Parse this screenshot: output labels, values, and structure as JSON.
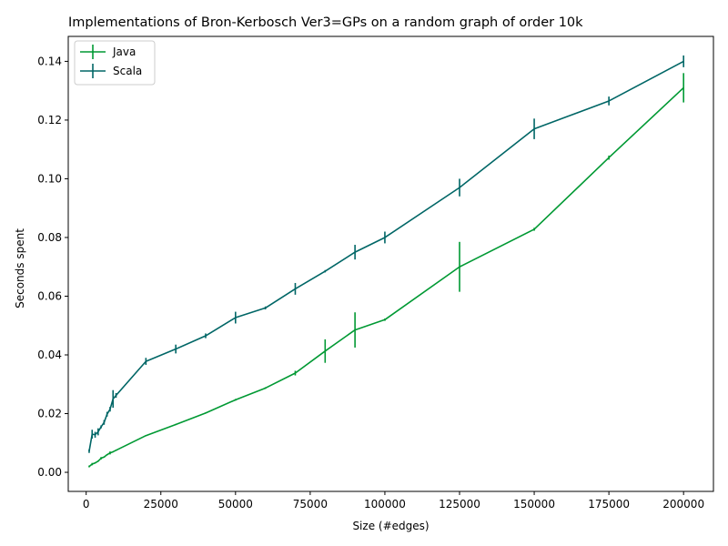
{
  "chart_data": {
    "type": "line",
    "title": "Implementations of Bron-Kerbosch Ver3=GPs on a random graph of order 10k",
    "xlabel": "Size (#edges)",
    "ylabel": "Seconds spent",
    "xlim": [
      -6000,
      210000
    ],
    "ylim": [
      -0.0065,
      0.1485
    ],
    "xticks": [
      0,
      25000,
      50000,
      75000,
      100000,
      125000,
      150000,
      175000,
      200000
    ],
    "yticks": [
      0.0,
      0.02,
      0.04,
      0.06,
      0.08,
      0.1,
      0.12,
      0.14
    ],
    "xtick_labels": [
      "0",
      "25000",
      "50000",
      "75000",
      "100000",
      "125000",
      "150000",
      "175000",
      "200000"
    ],
    "ytick_labels": [
      "0.00",
      "0.02",
      "0.04",
      "0.06",
      "0.08",
      "0.10",
      "0.12",
      "0.14"
    ],
    "grid": false,
    "legend_position": "top-left",
    "series": [
      {
        "name": "Java",
        "color": "#009933",
        "points": [
          {
            "x": 1000,
            "y": 0.002,
            "err": 0.0003
          },
          {
            "x": 2000,
            "y": 0.0028,
            "err": 0.0004
          },
          {
            "x": 3000,
            "y": 0.0032,
            "err": 0.0002
          },
          {
            "x": 4000,
            "y": 0.0038,
            "err": 0.0002
          },
          {
            "x": 5000,
            "y": 0.0048,
            "err": 0.0004
          },
          {
            "x": 6000,
            "y": 0.0052,
            "err": 0.0002
          },
          {
            "x": 7000,
            "y": 0.006,
            "err": 0.0002
          },
          {
            "x": 8000,
            "y": 0.0066,
            "err": 0.0005
          },
          {
            "x": 9000,
            "y": 0.007,
            "err": 0.0002
          },
          {
            "x": 10000,
            "y": 0.0075,
            "err": 0.0002
          },
          {
            "x": 20000,
            "y": 0.0125,
            "err": 0.0002
          },
          {
            "x": 30000,
            "y": 0.0163,
            "err": 0.0002
          },
          {
            "x": 40000,
            "y": 0.0202,
            "err": 0.0002
          },
          {
            "x": 50000,
            "y": 0.0247,
            "err": 0.0003
          },
          {
            "x": 60000,
            "y": 0.0287,
            "err": 0.0003
          },
          {
            "x": 70000,
            "y": 0.0338,
            "err": 0.0008
          },
          {
            "x": 80000,
            "y": 0.0413,
            "err": 0.004
          },
          {
            "x": 90000,
            "y": 0.0485,
            "err": 0.006
          },
          {
            "x": 100000,
            "y": 0.052,
            "err": 0.0004
          },
          {
            "x": 125000,
            "y": 0.07,
            "err": 0.0085
          },
          {
            "x": 150000,
            "y": 0.0828,
            "err": 0.0005
          },
          {
            "x": 175000,
            "y": 0.1072,
            "err": 0.0007
          },
          {
            "x": 200000,
            "y": 0.131,
            "err": 0.005
          }
        ]
      },
      {
        "name": "Scala",
        "color": "#006666",
        "points": [
          {
            "x": 1000,
            "y": 0.0072,
            "err": 0.0006
          },
          {
            "x": 2000,
            "y": 0.013,
            "err": 0.0015
          },
          {
            "x": 3000,
            "y": 0.0128,
            "err": 0.001
          },
          {
            "x": 4000,
            "y": 0.0138,
            "err": 0.0012
          },
          {
            "x": 5000,
            "y": 0.0155,
            "err": 0.0005
          },
          {
            "x": 6000,
            "y": 0.017,
            "err": 0.0008
          },
          {
            "x": 7000,
            "y": 0.0198,
            "err": 0.0008
          },
          {
            "x": 8000,
            "y": 0.0215,
            "err": 0.0008
          },
          {
            "x": 9000,
            "y": 0.025,
            "err": 0.003
          },
          {
            "x": 10000,
            "y": 0.0262,
            "err": 0.0008
          },
          {
            "x": 20000,
            "y": 0.0378,
            "err": 0.0012
          },
          {
            "x": 30000,
            "y": 0.042,
            "err": 0.0015
          },
          {
            "x": 40000,
            "y": 0.0465,
            "err": 0.0008
          },
          {
            "x": 50000,
            "y": 0.0527,
            "err": 0.002
          },
          {
            "x": 60000,
            "y": 0.056,
            "err": 0.0005
          },
          {
            "x": 70000,
            "y": 0.0625,
            "err": 0.002
          },
          {
            "x": 80000,
            "y": 0.0685,
            "err": 0.0004
          },
          {
            "x": 90000,
            "y": 0.075,
            "err": 0.0025
          },
          {
            "x": 100000,
            "y": 0.08,
            "err": 0.002
          },
          {
            "x": 125000,
            "y": 0.097,
            "err": 0.003
          },
          {
            "x": 150000,
            "y": 0.117,
            "err": 0.0035
          },
          {
            "x": 175000,
            "y": 0.1265,
            "err": 0.0015
          },
          {
            "x": 200000,
            "y": 0.14,
            "err": 0.002
          }
        ]
      }
    ]
  }
}
